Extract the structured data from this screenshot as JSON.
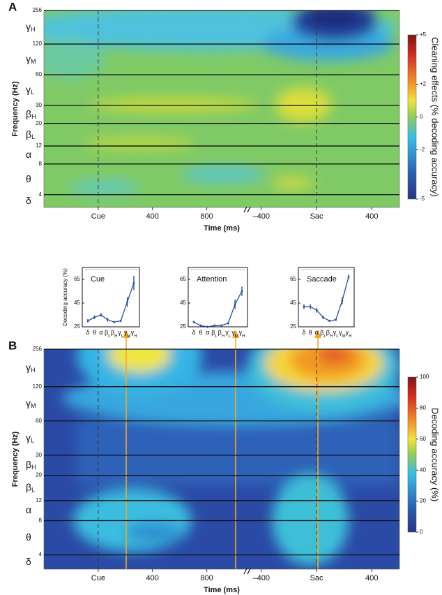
{
  "chart_data": [
    {
      "type": "heatmap",
      "label": "A",
      "xlabel": "Time (ms)",
      "ylabel": "Frequency (Hz)",
      "log_y": true,
      "ylim": [
        3,
        256
      ],
      "yticks": [
        4,
        8,
        12,
        20,
        30,
        60,
        120,
        256
      ],
      "xlim": [
        -400,
        1100
      ],
      "xticks": [
        {
          "value": 0,
          "label": "Cue"
        },
        400,
        800
      ],
      "x2lim": [
        -500,
        600
      ],
      "x2ticks": [
        {
          "value": -400,
          "label": "–400"
        },
        {
          "value": 0,
          "label": "Sac"
        },
        400
      ],
      "bands": [
        {
          "symbol": "γ",
          "sub": "H"
        },
        {
          "symbol": "γ",
          "sub": "M"
        },
        {
          "symbol": "γ",
          "sub": "L"
        },
        {
          "symbol": "β",
          "sub": "H"
        },
        {
          "symbol": "β",
          "sub": "L"
        },
        {
          "symbol": "α"
        },
        {
          "symbol": "θ"
        },
        {
          "symbol": "δ"
        }
      ],
      "colorbar": {
        "label": "Cleaning effects (% decoding accuracy)",
        "lim": [
          -5,
          5
        ],
        "ticks": [
          {
            "value": 5,
            "label": "+5"
          },
          {
            "value": 2,
            "label": "+2"
          },
          0,
          -2,
          -5
        ]
      }
    },
    {
      "type": "line",
      "title": "Cue",
      "ylabel": "Decoding accuracy (%)",
      "ylim": [
        25,
        75
      ],
      "yticks": [
        25,
        45,
        65
      ],
      "categories": [
        {
          "symbol": "δ"
        },
        {
          "symbol": "θ"
        },
        {
          "symbol": "α"
        },
        {
          "symbol": "β",
          "sub": "L"
        },
        {
          "symbol": "β",
          "sub": "H"
        },
        {
          "symbol": "γ",
          "sub": "L"
        },
        {
          "symbol": "γ",
          "sub": "M"
        },
        {
          "symbol": "γ",
          "sub": "H"
        }
      ],
      "series": [
        {
          "color": "#2a4ea0",
          "values": [
            30,
            33,
            35,
            31,
            29,
            30,
            46,
            62
          ],
          "errors": [
            1.5,
            1.5,
            1.5,
            1.5,
            1,
            1,
            4,
            6
          ]
        }
      ]
    },
    {
      "type": "line",
      "title": "Attention",
      "ylim": [
        25,
        75
      ],
      "yticks": [
        25,
        45,
        65
      ],
      "categories": [
        {
          "symbol": "δ"
        },
        {
          "symbol": "θ"
        },
        {
          "symbol": "α"
        },
        {
          "symbol": "β",
          "sub": "L"
        },
        {
          "symbol": "β",
          "sub": "H"
        },
        {
          "symbol": "γ",
          "sub": "L"
        },
        {
          "symbol": "γ",
          "sub": "M"
        },
        {
          "symbol": "γ",
          "sub": "H"
        }
      ],
      "series": [
        {
          "color": "#2a4ea0",
          "values": [
            29,
            26,
            25,
            26,
            26,
            28,
            44,
            55
          ],
          "errors": [
            1,
            1,
            1,
            1,
            1,
            1,
            4,
            4
          ]
        }
      ]
    },
    {
      "type": "line",
      "title": "Saccade",
      "ylim": [
        25,
        75
      ],
      "yticks": [
        25,
        45,
        65
      ],
      "categories": [
        {
          "symbol": "δ"
        },
        {
          "symbol": "θ"
        },
        {
          "symbol": "α"
        },
        {
          "symbol": "β",
          "sub": "L"
        },
        {
          "symbol": "β",
          "sub": "H"
        },
        {
          "symbol": "γ",
          "sub": "L"
        },
        {
          "symbol": "γ",
          "sub": "M"
        },
        {
          "symbol": "γ",
          "sub": "H"
        }
      ],
      "series": [
        {
          "color": "#2a4ea0",
          "values": [
            42,
            42,
            39,
            33,
            30,
            31,
            47,
            67
          ],
          "errors": [
            2,
            2,
            2,
            1.5,
            1,
            1,
            3,
            2
          ]
        }
      ]
    },
    {
      "type": "heatmap",
      "label": "B",
      "xlabel": "Time (ms)",
      "ylabel": "Frequency (Hz)",
      "log_y": true,
      "ylim": [
        3,
        256
      ],
      "yticks": [
        4,
        8,
        12,
        20,
        30,
        60,
        120,
        256
      ],
      "xlim": [
        -400,
        1100
      ],
      "xticks": [
        {
          "value": 0,
          "label": "Cue"
        },
        400,
        800
      ],
      "x2lim": [
        -500,
        600
      ],
      "x2ticks": [
        {
          "value": -400,
          "label": "–400"
        },
        {
          "value": 0,
          "label": "Sac"
        },
        400
      ],
      "bands": [
        {
          "symbol": "γ",
          "sub": "H"
        },
        {
          "symbol": "γ",
          "sub": "M"
        },
        {
          "symbol": "γ",
          "sub": "L"
        },
        {
          "symbol": "β",
          "sub": "H"
        },
        {
          "symbol": "β",
          "sub": "L"
        },
        {
          "symbol": "α"
        },
        {
          "symbol": "θ"
        },
        {
          "symbol": "δ"
        }
      ],
      "colorbar": {
        "label": "Decoding accuracy (%)",
        "lim": [
          0,
          100
        ],
        "ticks": [
          0,
          20,
          40,
          60,
          80,
          100
        ]
      }
    }
  ]
}
